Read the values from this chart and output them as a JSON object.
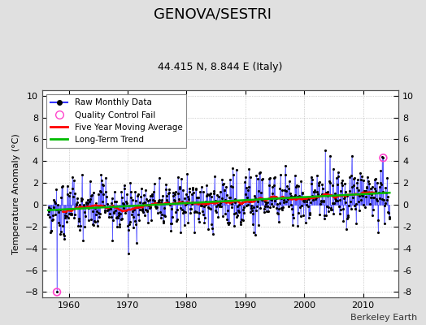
{
  "title": "GENOVA/SESTRI",
  "subtitle": "44.415 N, 8.844 E (Italy)",
  "ylabel": "Temperature Anomaly (°C)",
  "attribution": "Berkeley Earth",
  "xlim": [
    1955.5,
    2016
  ],
  "ylim": [
    -8.5,
    10.5
  ],
  "yticks": [
    -8,
    -6,
    -4,
    -2,
    0,
    2,
    4,
    6,
    8,
    10
  ],
  "xticks": [
    1960,
    1970,
    1980,
    1990,
    2000,
    2010
  ],
  "bg_color": "#e0e0e0",
  "plot_bg_color": "#ffffff",
  "raw_line_color": "#3333ff",
  "raw_dot_color": "#000000",
  "moving_avg_color": "#ff0000",
  "trend_color": "#00bb00",
  "qc_fail_color": "#ff44cc",
  "seed": 15
}
